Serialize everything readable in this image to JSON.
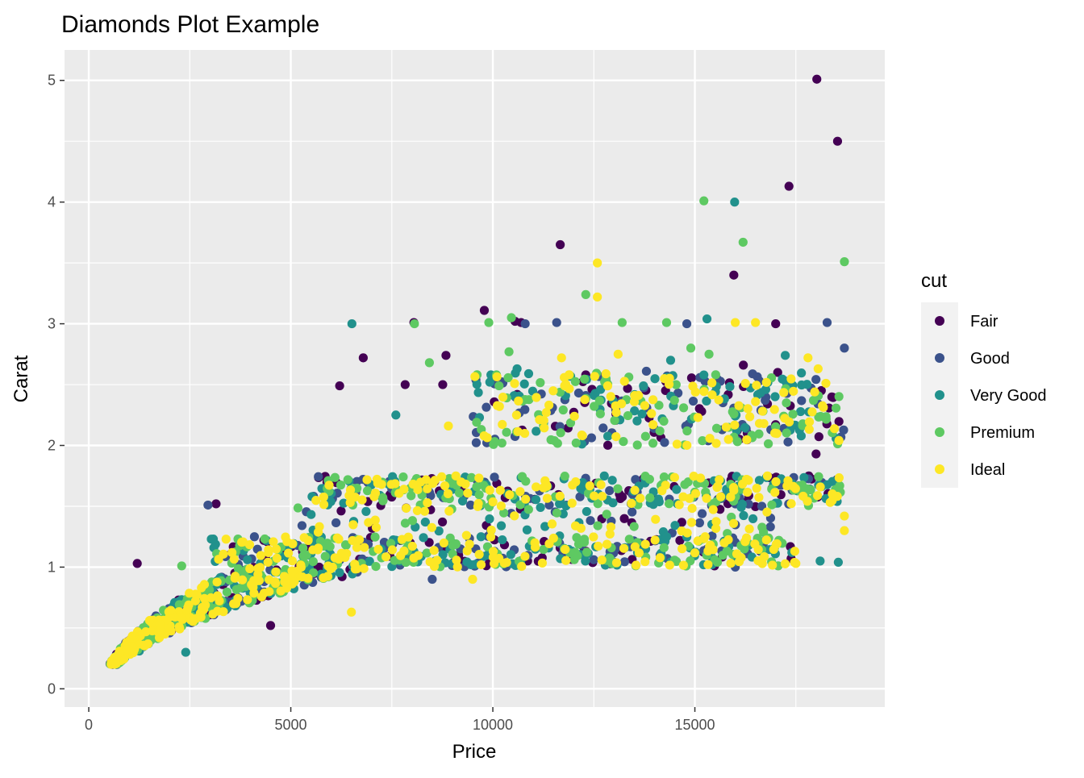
{
  "chart_data": {
    "type": "scatter",
    "title": "Diamonds Plot Example",
    "xlabel": "Price",
    "ylabel": "Carat",
    "xlim": [
      -600,
      19700
    ],
    "ylim": [
      -0.15,
      5.25
    ],
    "x_ticks": [
      0,
      5000,
      10000,
      15000
    ],
    "y_ticks": [
      0,
      1,
      2,
      3,
      4,
      5
    ],
    "grid": true,
    "legend_title": "cut",
    "legend_position": "right",
    "series": [
      {
        "name": "Fair",
        "color": "#440154",
        "outliers": [
          [
            18018,
            5.01
          ],
          [
            18531,
            4.5
          ],
          [
            17329,
            4.13
          ],
          [
            11668,
            3.65
          ],
          [
            15964,
            3.4
          ],
          [
            9789,
            3.11
          ],
          [
            10551,
            3.02
          ],
          [
            8045,
            3.01
          ],
          [
            10700,
            3.01
          ],
          [
            17000,
            3.0
          ],
          [
            6793,
            2.72
          ],
          [
            8840,
            2.74
          ],
          [
            6209,
            2.49
          ],
          [
            7830,
            2.5
          ],
          [
            8760,
            2.5
          ],
          [
            12300,
            2.58
          ],
          [
            16200,
            2.66
          ],
          [
            17050,
            2.6
          ],
          [
            18000,
            1.93
          ],
          [
            1200,
            1.03
          ],
          [
            3150,
            1.52
          ],
          [
            4500,
            0.52
          ],
          [
            3550,
            0.75
          ]
        ],
        "cluster_seed": 11,
        "cluster_count": 240
      },
      {
        "name": "Good",
        "color": "#3b528b",
        "outliers": [
          [
            10800,
            3.0
          ],
          [
            11580,
            3.01
          ],
          [
            14801,
            3.0
          ],
          [
            18273,
            3.01
          ],
          [
            18700,
            2.8
          ],
          [
            13800,
            2.61
          ],
          [
            8500,
            0.9
          ],
          [
            9200,
            1.15
          ],
          [
            16000,
            1.0
          ],
          [
            2950,
            1.51
          ]
        ],
        "cluster_seed": 23,
        "cluster_count": 320
      },
      {
        "name": "Very Good",
        "color": "#21918c",
        "outliers": [
          [
            6512,
            3.0
          ],
          [
            15984,
            4.0
          ],
          [
            15300,
            3.04
          ],
          [
            17237,
            2.74
          ],
          [
            14400,
            2.7
          ],
          [
            18550,
            1.04
          ],
          [
            18100,
            1.05
          ],
          [
            17400,
            1.12
          ],
          [
            1250,
            0.31
          ],
          [
            2400,
            0.3
          ],
          [
            7600,
            2.25
          ],
          [
            10600,
            2.63
          ],
          [
            16300,
            1.2
          ]
        ],
        "cluster_seed": 37,
        "cluster_count": 420
      },
      {
        "name": "Premium",
        "color": "#5ec962",
        "outliers": [
          [
            15223,
            4.01
          ],
          [
            16193,
            3.67
          ],
          [
            18701,
            3.51
          ],
          [
            12300,
            3.24
          ],
          [
            13200,
            3.01
          ],
          [
            14300,
            3.01
          ],
          [
            10460,
            3.05
          ],
          [
            9900,
            3.01
          ],
          [
            8060,
            3.0
          ],
          [
            14900,
            2.8
          ],
          [
            15350,
            2.75
          ],
          [
            8430,
            2.68
          ],
          [
            10400,
            2.77
          ],
          [
            2300,
            1.01
          ],
          [
            1650,
            0.48
          ]
        ],
        "cluster_seed": 53,
        "cluster_count": 460
      },
      {
        "name": "Ideal",
        "color": "#fde725",
        "outliers": [
          [
            12587,
            3.5
          ],
          [
            12587,
            3.22
          ],
          [
            16000,
            3.01
          ],
          [
            16500,
            3.01
          ],
          [
            17800,
            2.72
          ],
          [
            13100,
            2.75
          ],
          [
            11700,
            2.72
          ],
          [
            18700,
            1.3
          ],
          [
            18700,
            1.42
          ],
          [
            6500,
            0.63
          ],
          [
            9500,
            0.9
          ],
          [
            17500,
            1.03
          ],
          [
            18050,
            2.63
          ],
          [
            8900,
            2.16
          ]
        ],
        "cluster_seed": 71,
        "cluster_count": 520
      }
    ]
  }
}
